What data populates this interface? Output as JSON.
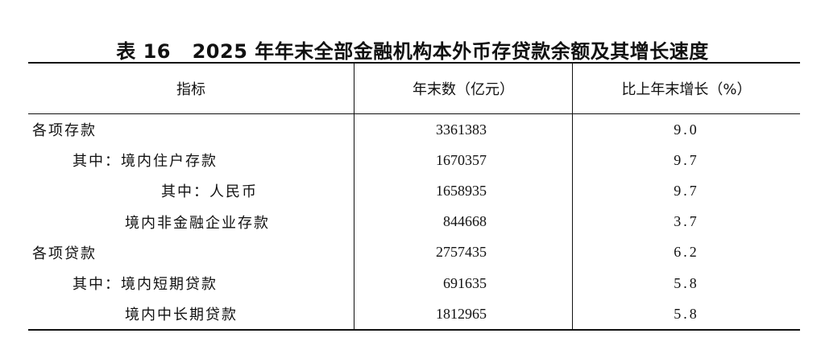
{
  "title": {
    "prefix": "表 16",
    "text": "2025 年年末全部金融机构本外币存贷款余额及其增长速度"
  },
  "table": {
    "headers": [
      "指标",
      "年末数（亿元）",
      "比上年末增长（%）"
    ],
    "rows": [
      {
        "label": "各项存款",
        "value": "3361383",
        "growth": "9.0",
        "indent": 0
      },
      {
        "label": "其中：境内住户存款",
        "value": "1670357",
        "growth": "9.7",
        "indent": 1
      },
      {
        "label": "其中：人民币",
        "value": "1658935",
        "growth": "9.7",
        "indent": 3
      },
      {
        "label": "境内非金融企业存款",
        "value": "844668",
        "growth": "3.7",
        "indent": 2
      },
      {
        "label": "各项贷款",
        "value": "2757435",
        "growth": "6.2",
        "indent": 0
      },
      {
        "label": "其中：境内短期贷款",
        "value": "691635",
        "growth": "5.8",
        "indent": 1
      },
      {
        "label": "境内中长期贷款",
        "value": "1812965",
        "growth": "5.8",
        "indent": 2
      }
    ]
  }
}
